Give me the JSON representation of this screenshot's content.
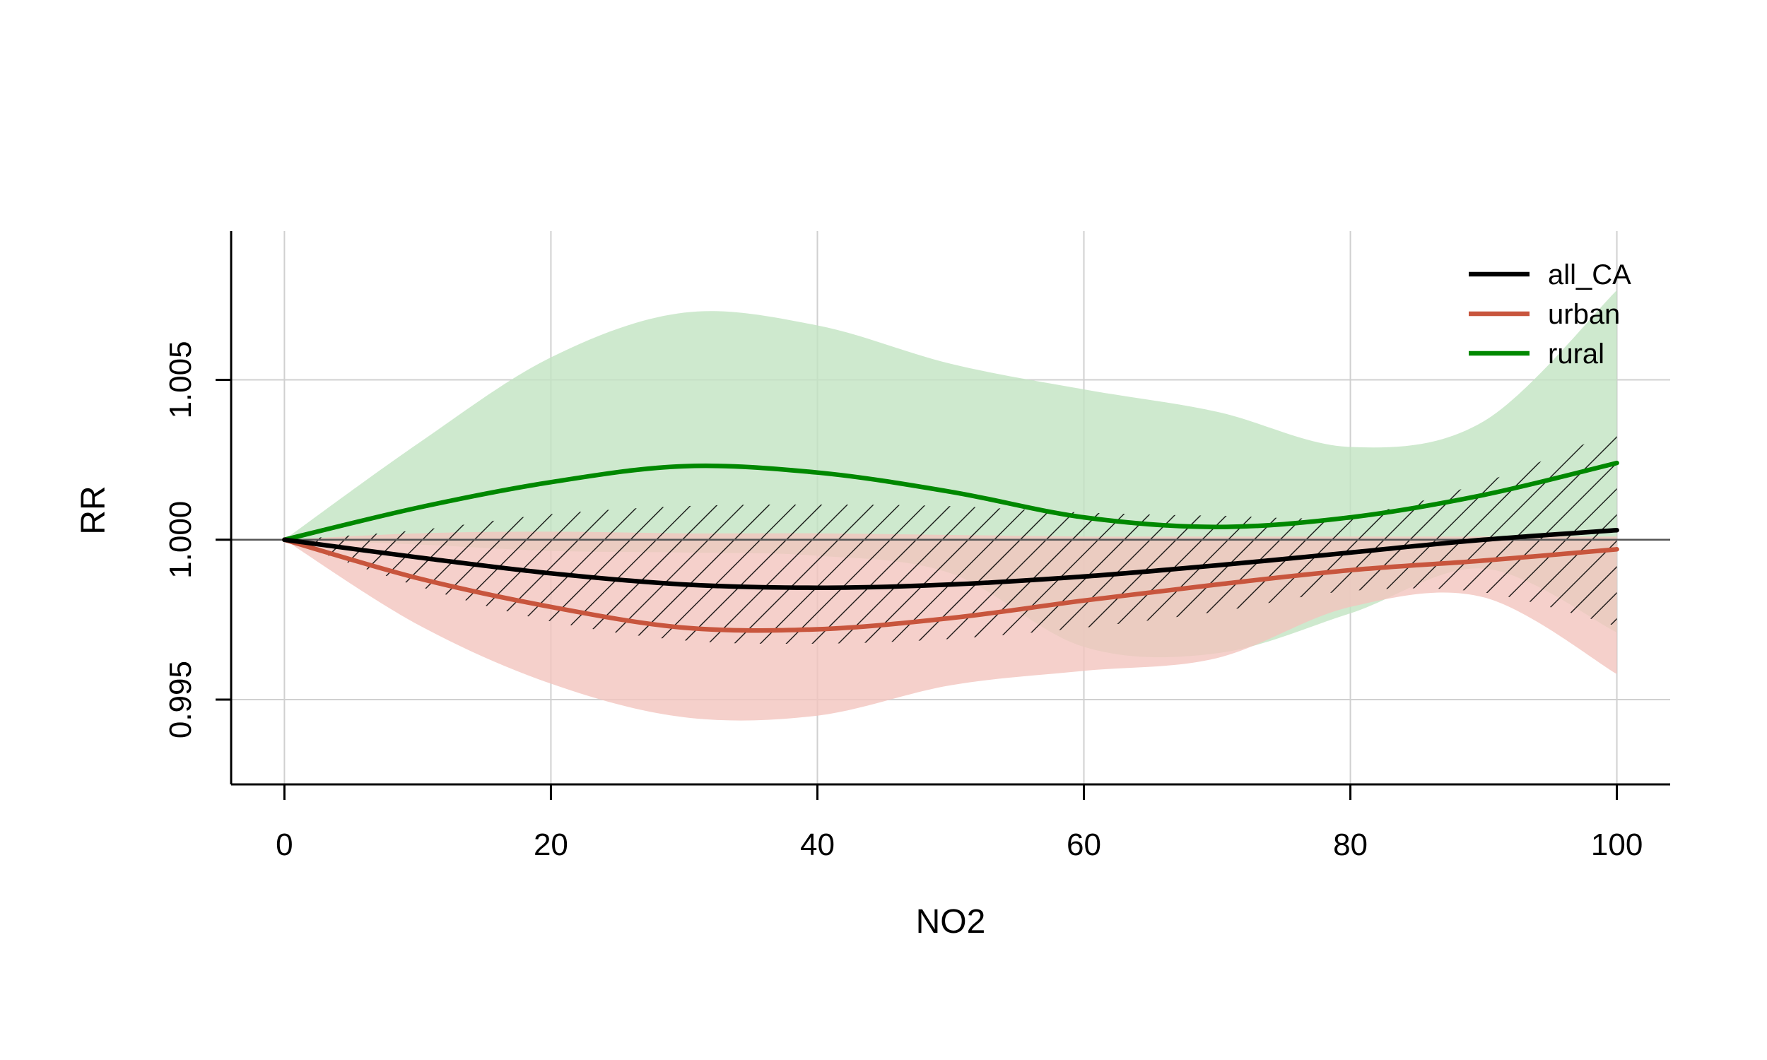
{
  "chart_data": {
    "type": "line",
    "xlabel": "NO2",
    "ylabel": "RR",
    "xlim": [
      -4,
      104
    ],
    "ylim": [
      0.99235,
      1.00965
    ],
    "x_ticks": [
      0,
      20,
      40,
      60,
      80,
      100
    ],
    "x_tick_labels": [
      "0",
      "20",
      "40",
      "60",
      "80",
      "100"
    ],
    "y_ticks": [
      0.995,
      1.0,
      1.005
    ],
    "y_tick_labels": [
      "0.995",
      "1.000",
      "1.005"
    ],
    "grid": true,
    "reference_line": 1.0,
    "legend_position": "top-right",
    "x": [
      0,
      10,
      20,
      30,
      40,
      50,
      60,
      70,
      80,
      90,
      100
    ],
    "series": [
      {
        "name": "all_CA",
        "color": "#000000",
        "ci_style": "hatched",
        "values": [
          1.0,
          0.99945,
          0.99895,
          0.9986,
          0.9985,
          0.9986,
          0.99885,
          0.9992,
          0.9996,
          1.0,
          1.0003
        ],
        "lower": [
          1.0,
          0.99855,
          0.99745,
          0.99685,
          0.99675,
          0.9969,
          0.99725,
          0.99775,
          0.9984,
          0.99835,
          0.9973
        ],
        "upper": [
          1.0,
          1.0003,
          1.0008,
          1.00105,
          1.0011,
          1.00105,
          1.00085,
          1.00075,
          1.00075,
          1.0018,
          1.0034
        ]
      },
      {
        "name": "urban",
        "color": "#C8553D",
        "fill": "#F2C4BE",
        "values": [
          1.0,
          0.9988,
          0.9979,
          0.99725,
          0.9972,
          0.99755,
          0.9981,
          0.9986,
          0.99905,
          0.99935,
          0.9997
        ],
        "lower": [
          1.0,
          0.99735,
          0.9955,
          0.99445,
          0.9945,
          0.99545,
          0.9959,
          0.9963,
          0.9979,
          0.9982,
          0.9958
        ],
        "upper": [
          1.0,
          1.0002,
          1.00025,
          1.0002,
          1.0002,
          1.00015,
          1.0001,
          1.0001,
          1.0001,
          1.0001,
          1.0001
        ]
      },
      {
        "name": "rural",
        "color": "#008800",
        "fill": "#C2E3C2",
        "values": [
          1.0,
          1.001,
          1.0018,
          1.0023,
          1.0021,
          1.0015,
          1.0007,
          1.0004,
          1.0007,
          1.0014,
          1.0024
        ],
        "lower": [
          1.0,
          0.99985,
          0.99965,
          0.9996,
          0.9995,
          0.99895,
          0.99665,
          0.99645,
          0.9977,
          0.9991,
          0.9971
        ],
        "upper": [
          1.0,
          1.003,
          1.0057,
          1.0071,
          1.0067,
          1.0055,
          1.0047,
          1.004,
          1.0029,
          1.0037,
          1.0078
        ]
      }
    ]
  }
}
